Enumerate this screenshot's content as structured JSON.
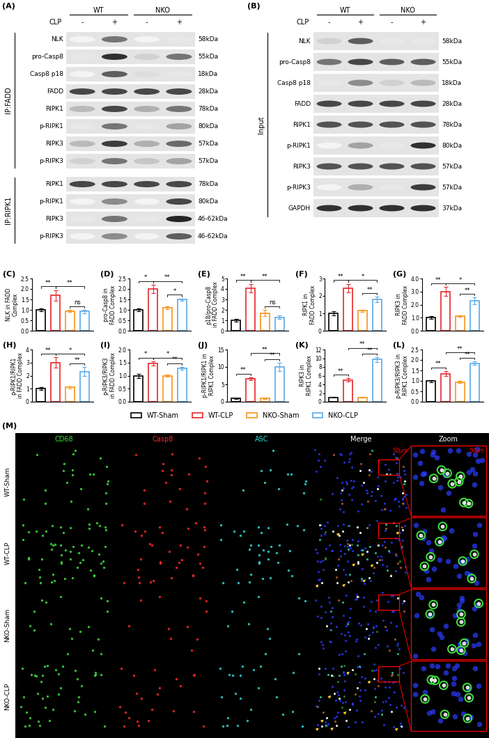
{
  "blots": {
    "groups": [
      "WT",
      "NKO"
    ],
    "condition": "CLP",
    "lanes": [
      "-",
      "+",
      "-",
      "+"
    ]
  },
  "panel_A": {
    "label": "(A)",
    "sections": [
      {
        "title": "IP:FADD",
        "rows": [
          {
            "name": "NLK",
            "size": "58kDa",
            "bands": [
              0.05,
              0.6,
              0.05,
              0.1
            ]
          },
          {
            "name": "pro-Casp8",
            "size": "55kDa",
            "bands": [
              0.1,
              0.9,
              0.2,
              0.6
            ]
          },
          {
            "name": "Casp8 p18",
            "size": "18kDa",
            "bands": [
              0.05,
              0.7,
              0.15,
              0.1
            ]
          },
          {
            "name": "FADD",
            "size": "28kDa",
            "bands": [
              0.8,
              0.8,
              0.8,
              0.8
            ]
          },
          {
            "name": "RIPK1",
            "size": "78kDa",
            "bands": [
              0.3,
              0.8,
              0.35,
              0.6
            ]
          },
          {
            "name": "p-RIPK1",
            "size": "80kDa",
            "bands": [
              0.1,
              0.6,
              0.1,
              0.4
            ]
          },
          {
            "name": "RIPK3",
            "size": "57kDa",
            "bands": [
              0.3,
              0.85,
              0.35,
              0.65
            ]
          },
          {
            "name": "p-RIPK3",
            "size": "57kDa",
            "bands": [
              0.2,
              0.6,
              0.25,
              0.4
            ]
          }
        ]
      },
      {
        "title": "IP:RIPK1",
        "rows": [
          {
            "name": "RIPK1",
            "size": "78kDa",
            "bands": [
              0.8,
              0.8,
              0.8,
              0.8
            ]
          },
          {
            "name": "p-RIPK1",
            "size": "80kDa",
            "bands": [
              0.05,
              0.5,
              0.05,
              0.8
            ]
          },
          {
            "name": "RIPK3",
            "size": "46-62kDa",
            "bands": [
              0.1,
              0.6,
              0.1,
              0.95
            ]
          },
          {
            "name": "p-RIPK3",
            "size": "46-62kDa",
            "bands": [
              0.05,
              0.5,
              0.05,
              0.7
            ]
          }
        ]
      }
    ]
  },
  "panel_B": {
    "label": "(B)",
    "sections": [
      {
        "title": "Input",
        "rows": [
          {
            "name": "NLK",
            "size": "58kDa",
            "bands": [
              0.2,
              0.7,
              0.1,
              0.1
            ]
          },
          {
            "name": "pro-Casp8",
            "size": "55kDa",
            "bands": [
              0.6,
              0.8,
              0.7,
              0.7
            ]
          },
          {
            "name": "Casp8 p18",
            "size": "18kDa",
            "bands": [
              0.1,
              0.5,
              0.2,
              0.3
            ]
          },
          {
            "name": "FADD",
            "size": "28kDa",
            "bands": [
              0.8,
              0.8,
              0.8,
              0.8
            ]
          },
          {
            "name": "RIPK1",
            "size": "78kDa",
            "bands": [
              0.75,
              0.75,
              0.75,
              0.75
            ]
          },
          {
            "name": "p-RIPK1",
            "size": "80kDa",
            "bands": [
              0.05,
              0.4,
              0.1,
              0.9
            ]
          },
          {
            "name": "RIPK3",
            "size": "57kDa",
            "bands": [
              0.75,
              0.75,
              0.75,
              0.75
            ]
          },
          {
            "name": "p-RIPK3",
            "size": "57kDa",
            "bands": [
              0.05,
              0.35,
              0.1,
              0.85
            ]
          },
          {
            "name": "GAPDH",
            "size": "37kDa",
            "bands": [
              0.9,
              0.9,
              0.9,
              0.9
            ]
          }
        ]
      }
    ]
  },
  "groups": [
    {
      "name": "WT-Sham",
      "color": "#000000"
    },
    {
      "name": "WT-CLP",
      "color": "#e8262b"
    },
    {
      "name": "NKO-Sham",
      "color": "#f7941d"
    },
    {
      "name": "NKO-CLP",
      "color": "#5aa9e6"
    }
  ],
  "chart_data": [
    {
      "panel": "(C)",
      "type": "bar",
      "ylabel": "NLK in FADD Complex",
      "values": [
        1.0,
        1.7,
        0.95,
        0.92
      ],
      "errors": [
        0.08,
        0.25,
        0.05,
        0.08
      ],
      "ylim": [
        0,
        2.5
      ],
      "yticks": [
        {
          "value": 0,
          "label": "0.0"
        },
        0.5,
        {
          "value": 1,
          "label": "1.0"
        },
        1.5,
        {
          "value": 2,
          "label": "2.0"
        },
        2.5
      ],
      "significance": [
        {
          "pair": [
            0,
            1
          ],
          "label": "**"
        },
        {
          "pair": [
            1,
            3
          ],
          "label": "**"
        },
        {
          "pair": [
            2,
            3
          ],
          "label": "ns"
        }
      ]
    },
    {
      "panel": "(D)",
      "type": "bar",
      "ylabel": "pro-Casp8 in FADD Complex",
      "values": [
        1.0,
        2.0,
        1.1,
        1.5
      ],
      "errors": [
        0.08,
        0.2,
        0.08,
        0.05
      ],
      "ylim": [
        0,
        2.5
      ],
      "yticks": [
        {
          "value": 0,
          "label": "0.0"
        },
        0.5,
        {
          "value": 1,
          "label": "1.0"
        },
        1.5,
        {
          "value": 2,
          "label": "2.0"
        },
        2.5
      ],
      "significance": [
        {
          "pair": [
            0,
            1
          ],
          "label": "*"
        },
        {
          "pair": [
            1,
            3
          ],
          "label": "**"
        },
        {
          "pair": [
            2,
            3
          ],
          "label": "*"
        }
      ]
    },
    {
      "panel": "(E)",
      "type": "bar",
      "ylabel": "p18/pro-Casp8 in FADD Complex",
      "values": [
        1.0,
        4.1,
        1.7,
        1.3
      ],
      "errors": [
        0.15,
        0.4,
        0.3,
        0.15
      ],
      "ylim": [
        0,
        5
      ],
      "yticks": [
        0,
        1,
        2,
        3,
        4,
        5
      ],
      "significance": [
        {
          "pair": [
            0,
            1
          ],
          "label": "**"
        },
        {
          "pair": [
            1,
            3
          ],
          "label": "**"
        },
        {
          "pair": [
            2,
            3
          ],
          "label": "ns"
        }
      ]
    },
    {
      "panel": "(F)",
      "type": "bar",
      "ylabel": "RIPK1 in FADD Complex",
      "values": [
        1.0,
        2.45,
        1.15,
        1.8
      ],
      "errors": [
        0.12,
        0.25,
        0.05,
        0.15
      ],
      "ylim": [
        0,
        3
      ],
      "yticks": [
        0,
        1,
        2,
        3
      ],
      "significance": [
        {
          "pair": [
            0,
            1
          ],
          "label": "**"
        },
        {
          "pair": [
            1,
            3
          ],
          "label": "*"
        },
        {
          "pair": [
            2,
            3
          ],
          "label": "**"
        }
      ]
    },
    {
      "panel": "(G)",
      "type": "bar",
      "ylabel": "RIPK3 in FADD Complex",
      "values": [
        1.0,
        3.0,
        1.1,
        2.3
      ],
      "errors": [
        0.1,
        0.35,
        0.05,
        0.25
      ],
      "ylim": [
        0,
        4
      ],
      "yticks": [
        {
          "value": 0,
          "label": "0.0"
        },
        {
          "value": 1,
          "label": "1.0"
        },
        {
          "value": 2,
          "label": "2.0"
        },
        {
          "value": 3,
          "label": "3.0"
        },
        {
          "value": 4,
          "label": "4.0"
        }
      ],
      "significance": [
        {
          "pair": [
            0,
            1
          ],
          "label": "**"
        },
        {
          "pair": [
            1,
            3
          ],
          "label": "*"
        },
        {
          "pair": [
            2,
            3
          ],
          "label": "**"
        }
      ]
    },
    {
      "panel": "(H)",
      "type": "bar",
      "ylabel": "p-RIPK1/RIPK1 in FADD Complex",
      "values": [
        1.0,
        3.0,
        1.1,
        2.3
      ],
      "errors": [
        0.1,
        0.4,
        0.08,
        0.35
      ],
      "ylim": [
        0,
        4
      ],
      "yticks": [
        0,
        1,
        2,
        3,
        4
      ],
      "significance": [
        {
          "pair": [
            0,
            1
          ],
          "label": "**"
        },
        {
          "pair": [
            1,
            3
          ],
          "label": "*"
        },
        {
          "pair": [
            2,
            3
          ],
          "label": "**"
        }
      ]
    },
    {
      "panel": "(I)",
      "type": "bar",
      "ylabel": "p-RIPK3/RIPK3 in FADD Complex",
      "values": [
        1.0,
        1.47,
        1.0,
        1.28
      ],
      "errors": [
        0.08,
        0.08,
        0.04,
        0.05
      ],
      "ylim": [
        0,
        2
      ],
      "yticks": [
        {
          "value": 0,
          "label": "0.0"
        },
        0.5,
        {
          "value": 1,
          "label": "1.0"
        },
        1.5,
        {
          "value": 2,
          "label": "2.0"
        }
      ],
      "significance": [
        {
          "pair": [
            0,
            1
          ],
          "label": "*"
        },
        {
          "pair": [
            1,
            3
          ],
          "label": "*"
        },
        {
          "pair": [
            2,
            3
          ],
          "label": "**"
        }
      ]
    },
    {
      "panel": "(J)",
      "type": "bar",
      "ylabel": "p-RIPK1/RIPK1 in RIPK1 Complex",
      "values": [
        1.0,
        6.6,
        1.0,
        10.0
      ],
      "errors": [
        0.1,
        0.4,
        0.1,
        1.2
      ],
      "ylim": [
        0,
        15
      ],
      "yticks": [
        0,
        5,
        10,
        15
      ],
      "significance": [
        {
          "pair": [
            0,
            1
          ],
          "label": "**"
        },
        {
          "pair": [
            1,
            3
          ],
          "label": "**"
        },
        {
          "pair": [
            2,
            3
          ],
          "label": "**"
        }
      ]
    },
    {
      "panel": "(K)",
      "type": "bar",
      "ylabel": "RIPK3 in RIPK1 Complex",
      "values": [
        1.0,
        5.0,
        1.0,
        9.7
      ],
      "errors": [
        0.1,
        0.4,
        0.1,
        0.5
      ],
      "ylim": [
        0,
        12
      ],
      "yticks": [
        0,
        2,
        4,
        6,
        8,
        10,
        12
      ],
      "significance": [
        {
          "pair": [
            0,
            1
          ],
          "label": "**"
        },
        {
          "pair": [
            1,
            3
          ],
          "label": "**"
        },
        {
          "pair": [
            2,
            3
          ],
          "label": "**"
        }
      ]
    },
    {
      "panel": "(L)",
      "type": "bar",
      "ylabel": "p-RIPK3/RIPK3 in RIPK1 Complex",
      "values": [
        1.0,
        1.35,
        0.95,
        1.85
      ],
      "errors": [
        0.05,
        0.12,
        0.05,
        0.07
      ],
      "ylim": [
        0,
        2.5
      ],
      "yticks": [
        {
          "value": 0,
          "label": "0.0"
        },
        0.5,
        {
          "value": 1,
          "label": "1.0"
        },
        1.5,
        {
          "value": 2,
          "label": "2.0"
        },
        2.5
      ],
      "significance": [
        {
          "pair": [
            0,
            1
          ],
          "label": "**"
        },
        {
          "pair": [
            1,
            3
          ],
          "label": "**"
        },
        {
          "pair": [
            2,
            3
          ],
          "label": "**"
        }
      ]
    }
  ],
  "panel_M": {
    "label": "(M)",
    "channels": [
      {
        "name": "CD68",
        "color": "#3ddc3d"
      },
      {
        "name": "Casp8",
        "color": "#ff2a2a"
      },
      {
        "name": "ASC",
        "color": "#33d6d6"
      }
    ],
    "merge": "Merge",
    "zoom": "Zoom",
    "rows": [
      "WT-Sham",
      "WT-CLP",
      "NKO-Sham",
      "NKO-CLP"
    ],
    "scale_bar": "50μm"
  }
}
